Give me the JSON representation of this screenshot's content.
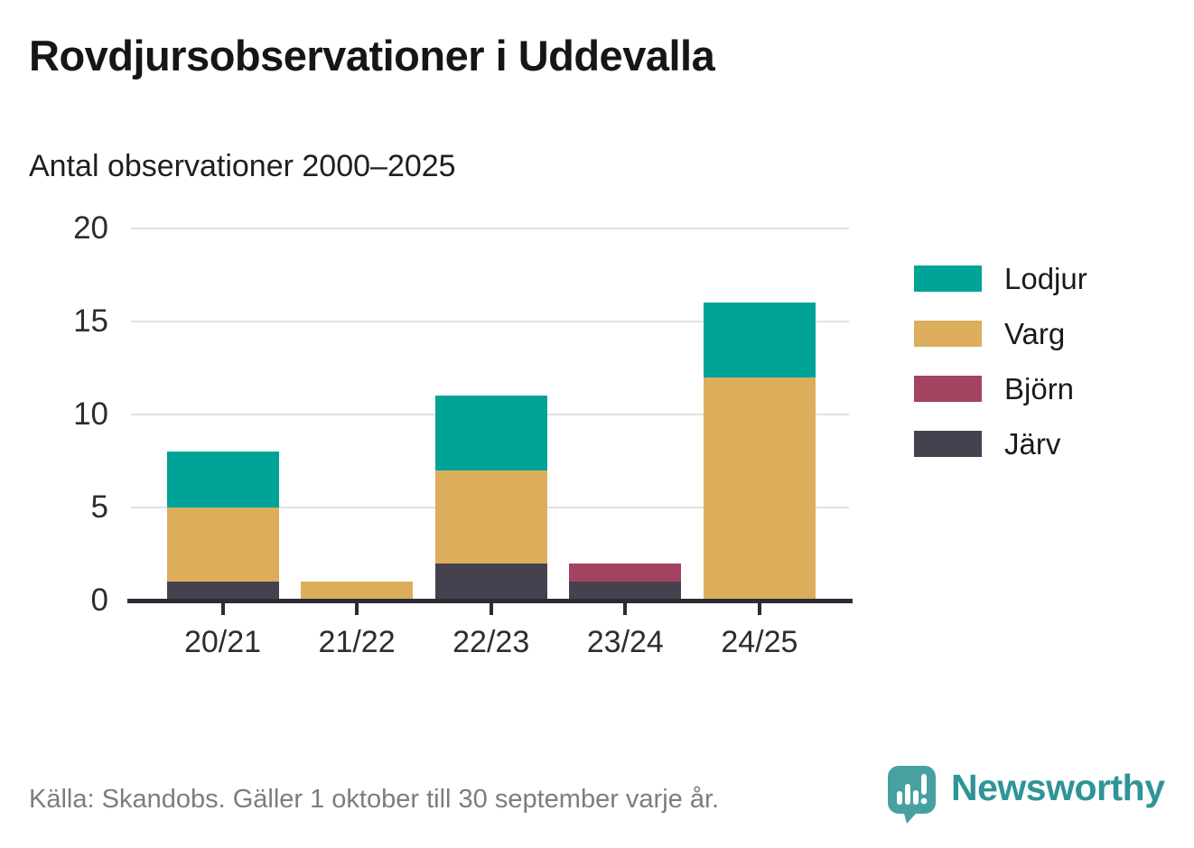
{
  "header": {
    "title": "Rovdjursobservationer i Uddevalla",
    "subtitle": "Antal observationer 2000–2025"
  },
  "chart_data": {
    "type": "bar",
    "stacked": true,
    "title": "Rovdjursobservationer i Uddevalla",
    "subtitle": "Antal observationer 2000–2025",
    "xlabel": "",
    "ylabel": "",
    "categories": [
      "20/21",
      "21/22",
      "22/23",
      "23/24",
      "24/25"
    ],
    "series": [
      {
        "name": "Lodjur",
        "color": "#00a398",
        "values": [
          3,
          0,
          4,
          0,
          4
        ]
      },
      {
        "name": "Varg",
        "color": "#dcae5c",
        "values": [
          4,
          1,
          5,
          0,
          12
        ]
      },
      {
        "name": "Björn",
        "color": "#a4435f",
        "values": [
          0,
          0,
          0,
          1,
          0
        ]
      },
      {
        "name": "Järv",
        "color": "#46414f",
        "values": [
          1,
          0,
          2,
          1,
          0
        ]
      }
    ],
    "stack_order_bottom_to_top": [
      "Järv",
      "Björn",
      "Varg",
      "Lodjur"
    ],
    "totals": [
      8,
      1,
      11,
      2,
      16
    ],
    "ylim": [
      0,
      20
    ],
    "yticks": [
      0,
      5,
      10,
      15,
      20
    ],
    "grid": true,
    "legend_position": "right"
  },
  "legend": {
    "items": [
      {
        "label": "Lodjur",
        "color": "#00a398"
      },
      {
        "label": "Varg",
        "color": "#dcae5c"
      },
      {
        "label": "Björn",
        "color": "#a4435f"
      },
      {
        "label": "Järv",
        "color": "#46414f"
      }
    ]
  },
  "footer": {
    "source": "Källa: Skandobs. Gäller 1 oktober till 30 september varje år.",
    "brand_name": "Newsworthy",
    "brand_color": "#2e9496",
    "brand_icon": "newsworthy-speech-bubble-bar-chart-icon"
  }
}
